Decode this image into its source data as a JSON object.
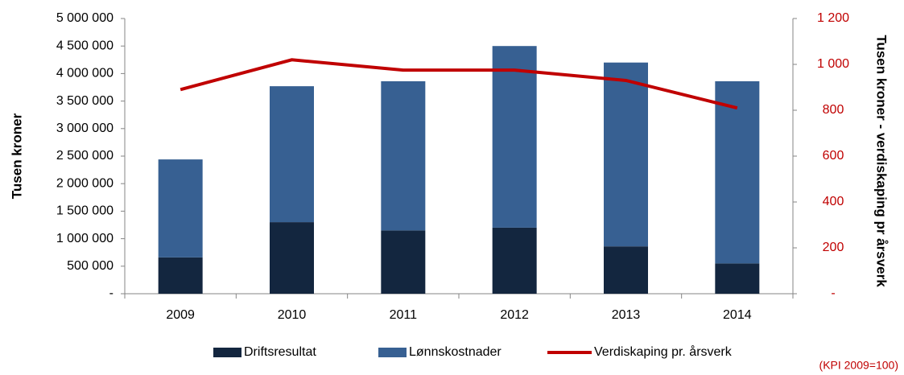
{
  "chart_data": {
    "type": "bar",
    "stacked": true,
    "categories": [
      "2009",
      "2010",
      "2011",
      "2012",
      "2013",
      "2014"
    ],
    "series": [
      {
        "name": "Driftsresultat",
        "color": "#13263f",
        "values": [
          660000,
          1300000,
          1150000,
          1200000,
          860000,
          550000
        ]
      },
      {
        "name": "Lønnskostnader",
        "color": "#376092",
        "values": [
          1780000,
          2470000,
          2710000,
          3300000,
          3340000,
          3310000
        ]
      },
      {
        "name": "Verdiskaping pr. årsverk",
        "color": "#c00000",
        "type": "line",
        "axis": "y2",
        "values": [
          890,
          1020,
          975,
          975,
          930,
          810
        ]
      }
    ],
    "ylabel": "Tusen kroner",
    "y2label": "Tusen kroner - verdiskaping pr årsverk",
    "annotation": "(KPI 2009=100)",
    "ylim": [
      0,
      5000000
    ],
    "yticks": [
      {
        "value": 0,
        "label": "-"
      },
      {
        "value": 500000,
        "label": "500 000"
      },
      {
        "value": 1000000,
        "label": "1 000 000"
      },
      {
        "value": 1500000,
        "label": "1 500 000"
      },
      {
        "value": 2000000,
        "label": "2 000 000"
      },
      {
        "value": 2500000,
        "label": "2 500 000"
      },
      {
        "value": 3000000,
        "label": "3 000 000"
      },
      {
        "value": 3500000,
        "label": "3 500 000"
      },
      {
        "value": 4000000,
        "label": "4 000 000"
      },
      {
        "value": 4500000,
        "label": "4 500 000"
      },
      {
        "value": 5000000,
        "label": "5 000 000"
      }
    ],
    "y2lim": [
      0,
      1200
    ],
    "y2ticks": [
      {
        "value": 0,
        "label": "-"
      },
      200,
      400,
      600,
      800,
      {
        "value": 1000,
        "label": "1 000"
      },
      {
        "value": 1200,
        "label": "1 200"
      }
    ],
    "y2color": "#c00000",
    "grid": false,
    "legend": "bottom"
  }
}
